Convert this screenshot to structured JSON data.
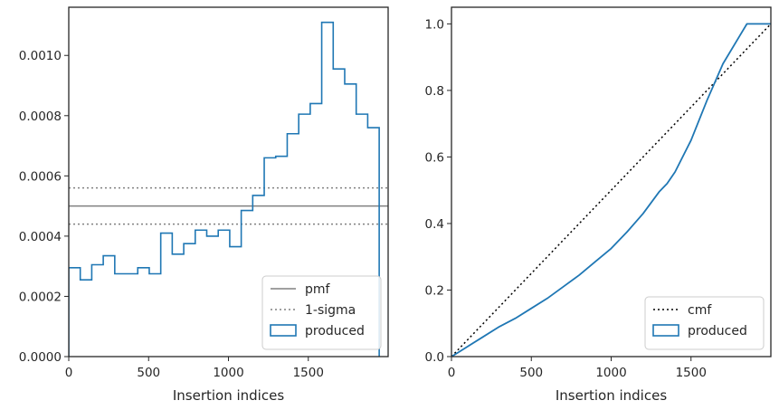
{
  "chart_data": [
    {
      "type": "histogram",
      "xlabel": "Insertion indices",
      "ylabel": "",
      "xlim": [
        0,
        2000
      ],
      "ylim": [
        0,
        0.00116
      ],
      "xticks": [
        0,
        500,
        1000,
        1500
      ],
      "yticks": [
        0.0,
        0.0002,
        0.0004,
        0.0006,
        0.0008,
        0.001
      ],
      "ytick_labels": [
        "0.0000",
        "0.0002",
        "0.0004",
        "0.0006",
        "0.0008",
        "0.0010"
      ],
      "legend_position": "lower-right",
      "bin_edges": [
        0,
        72,
        144,
        216,
        288,
        360,
        432,
        504,
        576,
        648,
        720,
        792,
        864,
        936,
        1008,
        1080,
        1152,
        1224,
        1296,
        1368,
        1440,
        1512,
        1584,
        1656,
        1728,
        1800,
        1872,
        1944
      ],
      "series": [
        {
          "name": "pmf",
          "style": "solid",
          "color": "#808080",
          "value": 0.0005
        },
        {
          "name": "1-sigma",
          "style": "dotted",
          "color": "#808080",
          "values": [
            0.00044,
            0.00056
          ]
        },
        {
          "name": "produced",
          "style": "step",
          "color": "#1f77b4",
          "values": [
            0.000295,
            0.000255,
            0.000305,
            0.000335,
            0.000275,
            0.000275,
            0.000295,
            0.000275,
            0.00041,
            0.00034,
            0.000375,
            0.00042,
            0.0004,
            0.00042,
            0.000365,
            0.000485,
            0.000535,
            0.00066,
            0.000665,
            0.00074,
            0.000805,
            0.00084,
            0.00111,
            0.000955,
            0.000905,
            0.000805,
            0.00076,
            0.0
          ]
        }
      ]
    },
    {
      "type": "line",
      "xlabel": "Insertion indices",
      "ylabel": "",
      "xlim": [
        0,
        2000
      ],
      "ylim": [
        0,
        1.05
      ],
      "xticks": [
        0,
        500,
        1000,
        1500
      ],
      "yticks": [
        0.0,
        0.2,
        0.4,
        0.6,
        0.8,
        1.0
      ],
      "ytick_labels": [
        "0.0",
        "0.2",
        "0.4",
        "0.6",
        "0.8",
        "1.0"
      ],
      "legend_position": "lower-right",
      "series": [
        {
          "name": "cmf",
          "style": "dotted",
          "color": "#000000",
          "x": [
            0,
            2000
          ],
          "y": [
            0,
            1.0
          ]
        },
        {
          "name": "produced",
          "style": "step",
          "color": "#1f77b4",
          "x": [
            0,
            100,
            200,
            300,
            400,
            500,
            600,
            700,
            800,
            900,
            1000,
            1100,
            1200,
            1300,
            1350,
            1400,
            1500,
            1600,
            1700,
            1800,
            1850,
            1900,
            1950,
            2000
          ],
          "y": [
            0,
            0.03,
            0.06,
            0.09,
            0.115,
            0.145,
            0.175,
            0.21,
            0.245,
            0.285,
            0.325,
            0.375,
            0.43,
            0.495,
            0.52,
            0.555,
            0.65,
            0.77,
            0.88,
            0.96,
            1.0,
            1.0,
            1.0,
            1.0
          ]
        }
      ]
    }
  ]
}
